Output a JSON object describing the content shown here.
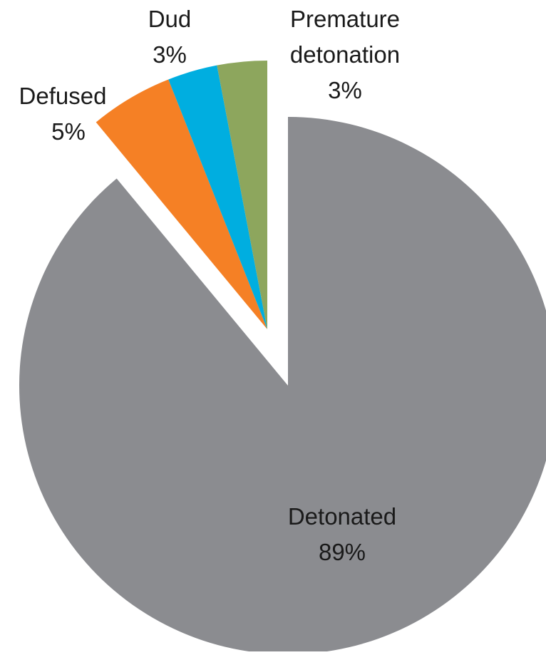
{
  "chart_data": {
    "type": "pie",
    "title": "",
    "exploded": true,
    "slices": [
      {
        "label": "Detonated",
        "value": 89,
        "value_label": "89%",
        "color": "#8b8c90"
      },
      {
        "label": "Defused",
        "value": 5,
        "value_label": "5%",
        "color": "#f58025"
      },
      {
        "label": "Dud",
        "value": 3,
        "value_label": "3%",
        "color": "#00aee0"
      },
      {
        "label": "Premature detonation",
        "value": 3,
        "value_label": "3%",
        "color": "#8da65d"
      }
    ]
  }
}
